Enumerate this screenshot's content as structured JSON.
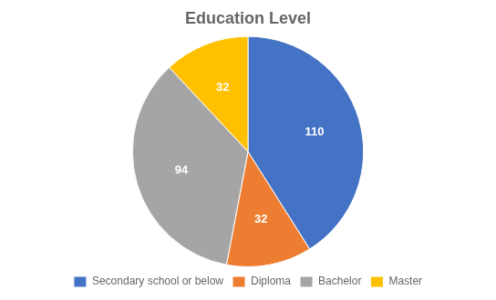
{
  "chart_data": {
    "type": "pie",
    "title": "Education Level",
    "categories": [
      "Secondary school or below",
      "Diploma",
      "Bachelor",
      "Master"
    ],
    "values": [
      110,
      32,
      94,
      32
    ],
    "colors": [
      "#4472C4",
      "#ED7D31",
      "#A5A5A5",
      "#FFC000"
    ],
    "data_labels": true,
    "legend": "bottom"
  }
}
